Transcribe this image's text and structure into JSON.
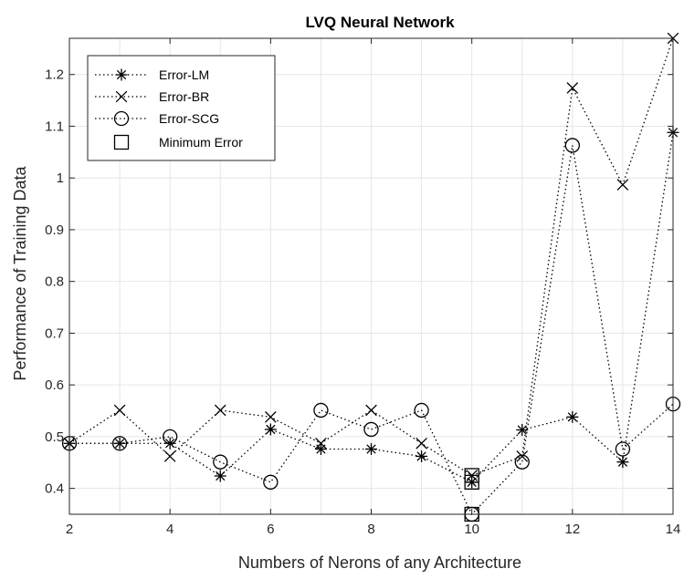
{
  "chart_data": {
    "type": "line",
    "title": "LVQ Neural Network",
    "xlabel": "Numbers of Nerons of any Architecture",
    "ylabel": "Performance of Training Data",
    "xlim": [
      2,
      14
    ],
    "ylim": [
      0.35,
      1.27
    ],
    "xticks": [
      2,
      4,
      6,
      8,
      10,
      12,
      14
    ],
    "xtick_labels": [
      "2",
      "4",
      "6",
      "8",
      "10",
      "12",
      "14"
    ],
    "yticks": [
      0.4,
      0.5,
      0.6,
      0.7,
      0.8,
      0.9,
      1.0,
      1.1,
      1.2
    ],
    "ytick_labels": [
      "0.4",
      "0.5",
      "0.6",
      "0.7",
      "0.8",
      "0.9",
      "1",
      "1.1",
      "1.2"
    ],
    "grid": true,
    "legend_position": "top-left",
    "x": [
      2,
      3,
      4,
      5,
      6,
      7,
      8,
      9,
      10,
      11,
      12,
      13,
      14
    ],
    "series": [
      {
        "name": "Error-LM",
        "marker": "asterisk",
        "values": [
          0.487,
          0.487,
          0.487,
          0.424,
          0.514,
          0.476,
          0.476,
          0.462,
          0.412,
          0.513,
          0.538,
          0.451,
          1.088
        ]
      },
      {
        "name": "Error-BR",
        "marker": "x",
        "values": [
          0.487,
          0.551,
          0.462,
          0.551,
          0.538,
          0.487,
          0.551,
          0.487,
          0.425,
          0.462,
          1.174,
          0.987,
          1.27
        ]
      },
      {
        "name": "Error-SCG",
        "marker": "circle",
        "values": [
          0.487,
          0.487,
          0.5,
          0.451,
          0.412,
          0.551,
          0.514,
          0.551,
          0.35,
          0.451,
          1.063,
          0.476,
          0.563
        ]
      }
    ],
    "minimum_error": {
      "name": "Minimum Error",
      "marker": "square",
      "points": [
        [
          10,
          0.425
        ],
        [
          10,
          0.412
        ],
        [
          10,
          0.35
        ]
      ]
    },
    "colors": {
      "series": "#000000",
      "grid": "#e6e6e6",
      "axis": "#262626"
    }
  }
}
